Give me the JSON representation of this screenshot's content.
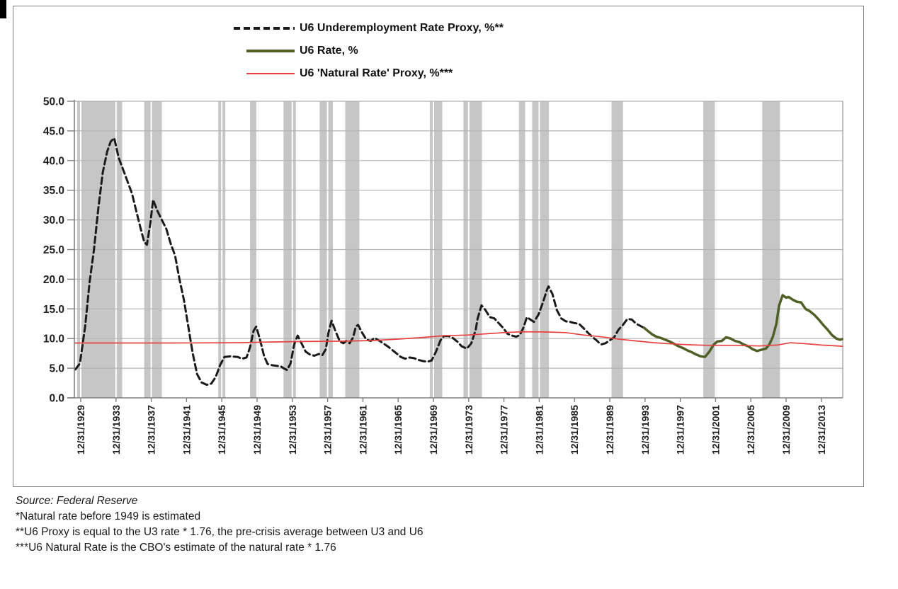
{
  "figure": {
    "legend": [
      {
        "label": "U6 Underemployment Rate Proxy, %**",
        "style": "dashed",
        "color": "#1a1a1a"
      },
      {
        "label": "U6 Rate, %",
        "style": "solid",
        "color": "#4f5f26"
      },
      {
        "label": "U6 'Natural Rate' Proxy, %***",
        "style": "solid-thin",
        "color": "#e84040"
      }
    ],
    "footnotes": {
      "source": "Source: Federal Reserve",
      "note1": "*Natural rate before 1949 is estimated",
      "note2": "**U6 Proxy is equal to the U3 rate * 1.76, the pre-crisis average between U3 and U6",
      "note3": "***U6 Natural Rate is the CBO's estimate of the natural rate * 1.76"
    }
  },
  "chart_data": {
    "type": "line",
    "title": "",
    "xlabel": "",
    "ylabel": "",
    "ylim": [
      0,
      50
    ],
    "xlim_years": [
      1929.3,
      2016.4
    ],
    "grid": "horizontal",
    "legend_position": "top-center",
    "y_ticks": [
      {
        "v": 0,
        "label": "0.0"
      },
      {
        "v": 5,
        "label": "5.0"
      },
      {
        "v": 10,
        "label": "10.0"
      },
      {
        "v": 15,
        "label": "15.0"
      },
      {
        "v": 20,
        "label": "20.0"
      },
      {
        "v": 25,
        "label": "25.0"
      },
      {
        "v": 30,
        "label": "30.0"
      },
      {
        "v": 35,
        "label": "35.0"
      },
      {
        "v": 40,
        "label": "40.0"
      },
      {
        "v": 45,
        "label": "45.0"
      },
      {
        "v": 50,
        "label": "50.0"
      }
    ],
    "x_ticks": [
      {
        "t": 1930,
        "label": "12/31/1929"
      },
      {
        "t": 1934,
        "label": "12/31/1933"
      },
      {
        "t": 1938,
        "label": "12/31/1937"
      },
      {
        "t": 1942,
        "label": "12/31/1941"
      },
      {
        "t": 1946,
        "label": "12/31/1945"
      },
      {
        "t": 1950,
        "label": "12/31/1949"
      },
      {
        "t": 1954,
        "label": "12/31/1953"
      },
      {
        "t": 1958,
        "label": "12/31/1957"
      },
      {
        "t": 1962,
        "label": "12/31/1961"
      },
      {
        "t": 1966,
        "label": "12/31/1965"
      },
      {
        "t": 1970,
        "label": "12/31/1969"
      },
      {
        "t": 1974,
        "label": "12/31/1973"
      },
      {
        "t": 1978,
        "label": "12/31/1977"
      },
      {
        "t": 1982,
        "label": "12/31/1981"
      },
      {
        "t": 1986,
        "label": "12/31/1985"
      },
      {
        "t": 1990,
        "label": "12/31/1989"
      },
      {
        "t": 1994,
        "label": "12/31/1993"
      },
      {
        "t": 1998,
        "label": "12/31/1997"
      },
      {
        "t": 2002,
        "label": "12/31/2001"
      },
      {
        "t": 2006,
        "label": "12/31/2005"
      },
      {
        "t": 2010,
        "label": "12/31/2009"
      },
      {
        "t": 2014,
        "label": "12/31/2013"
      }
    ],
    "recession_bands": [
      [
        1929.6,
        1934.7
      ],
      [
        1937.2,
        1939.2
      ],
      [
        1945.6,
        1946.4
      ],
      [
        1949.2,
        1950.1
      ],
      [
        1953.0,
        1954.4
      ],
      [
        1957.1,
        1958.6
      ],
      [
        1960.0,
        1961.6
      ],
      [
        1969.6,
        1971.0
      ],
      [
        1973.4,
        1975.5
      ],
      [
        1979.7,
        1980.4
      ],
      [
        1981.2,
        1983.1
      ],
      [
        1990.2,
        1991.5
      ],
      [
        2000.6,
        2002.1
      ],
      [
        2007.3,
        2009.3
      ]
    ],
    "colors": {
      "band": "#c6c6c6",
      "grid": "#b3b3b3",
      "axis": "#808080",
      "plot_border": "#9a9a9a",
      "tick_text": "#1f1f1f",
      "white_gridline": "#ffffff",
      "proxy_line": "#1a1a1a",
      "u6_line": "#4f5f26",
      "natural_line": "#e84040"
    },
    "series": [
      {
        "name": "U6 Underemployment Rate Proxy, %**",
        "color": "#1a1a1a",
        "width": 3,
        "dash": "9,5",
        "points": [
          [
            1929.4,
            4.8
          ],
          [
            1929.9,
            5.8
          ],
          [
            1930.5,
            12
          ],
          [
            1931,
            19.5
          ],
          [
            1931.5,
            25
          ],
          [
            1932,
            32
          ],
          [
            1932.5,
            38
          ],
          [
            1933,
            41.5
          ],
          [
            1933.4,
            43.2
          ],
          [
            1933.8,
            43.8
          ],
          [
            1934.3,
            40.5
          ],
          [
            1934.8,
            38.5
          ],
          [
            1935.3,
            36.5
          ],
          [
            1935.8,
            34.5
          ],
          [
            1936.3,
            31.5
          ],
          [
            1936.8,
            28.5
          ],
          [
            1937.2,
            26.3
          ],
          [
            1937.5,
            25.8
          ],
          [
            1937.9,
            29.5
          ],
          [
            1938.2,
            33.4
          ],
          [
            1938.7,
            31.5
          ],
          [
            1939.2,
            30
          ],
          [
            1939.7,
            28.5
          ],
          [
            1940.2,
            26
          ],
          [
            1940.7,
            24
          ],
          [
            1941.2,
            20
          ],
          [
            1941.7,
            16.5
          ],
          [
            1942.2,
            12
          ],
          [
            1942.7,
            7.5
          ],
          [
            1943.2,
            4
          ],
          [
            1943.7,
            2.6
          ],
          [
            1944.3,
            2.2
          ],
          [
            1944.8,
            2.4
          ],
          [
            1945.3,
            3.5
          ],
          [
            1945.8,
            5.5
          ],
          [
            1946.3,
            6.9
          ],
          [
            1947,
            7
          ],
          [
            1947.8,
            6.9
          ],
          [
            1948.3,
            6.6
          ],
          [
            1948.8,
            6.8
          ],
          [
            1949.2,
            8.5
          ],
          [
            1949.6,
            11.3
          ],
          [
            1949.9,
            12
          ],
          [
            1950.3,
            10
          ],
          [
            1950.8,
            7
          ],
          [
            1951.2,
            5.7
          ],
          [
            1951.7,
            5.5
          ],
          [
            1952.2,
            5.4
          ],
          [
            1952.7,
            5.3
          ],
          [
            1953.1,
            4.9
          ],
          [
            1953.4,
            4.7
          ],
          [
            1953.8,
            5.8
          ],
          [
            1954.2,
            9
          ],
          [
            1954.6,
            10.5
          ],
          [
            1955,
            9.3
          ],
          [
            1955.5,
            7.8
          ],
          [
            1956,
            7.3
          ],
          [
            1956.5,
            7.1
          ],
          [
            1957,
            7.4
          ],
          [
            1957.4,
            7.2
          ],
          [
            1957.8,
            8.2
          ],
          [
            1958.1,
            11
          ],
          [
            1958.45,
            13
          ],
          [
            1958.9,
            11.2
          ],
          [
            1959.4,
            9.5
          ],
          [
            1959.8,
            9.2
          ],
          [
            1960.1,
            9.6
          ],
          [
            1960.5,
            9.2
          ],
          [
            1960.9,
            10.2
          ],
          [
            1961.2,
            12
          ],
          [
            1961.45,
            12.3
          ],
          [
            1961.9,
            11
          ],
          [
            1962.4,
            9.8
          ],
          [
            1962.9,
            9.6
          ],
          [
            1963.3,
            10.1
          ],
          [
            1963.8,
            9.7
          ],
          [
            1964.3,
            9.2
          ],
          [
            1964.8,
            8.7
          ],
          [
            1965.3,
            8.1
          ],
          [
            1965.8,
            7.5
          ],
          [
            1966.3,
            6.9
          ],
          [
            1966.8,
            6.6
          ],
          [
            1967.3,
            6.8
          ],
          [
            1967.8,
            6.7
          ],
          [
            1968.3,
            6.4
          ],
          [
            1968.8,
            6.2
          ],
          [
            1969.3,
            6.1
          ],
          [
            1969.8,
            6.3
          ],
          [
            1970.3,
            7.8
          ],
          [
            1970.8,
            9.7
          ],
          [
            1971.2,
            10.4
          ],
          [
            1971.7,
            10.4
          ],
          [
            1972.2,
            10.1
          ],
          [
            1972.7,
            9.5
          ],
          [
            1973.2,
            8.7
          ],
          [
            1973.8,
            8.3
          ],
          [
            1974.3,
            9.2
          ],
          [
            1974.8,
            11.5
          ],
          [
            1975,
            13.3
          ],
          [
            1975.2,
            14.3
          ],
          [
            1975.45,
            15.6
          ],
          [
            1975.9,
            14.8
          ],
          [
            1976.4,
            13.6
          ],
          [
            1976.9,
            13.4
          ],
          [
            1977.4,
            12.6
          ],
          [
            1977.9,
            11.8
          ],
          [
            1978.4,
            10.8
          ],
          [
            1978.9,
            10.5
          ],
          [
            1979.4,
            10.3
          ],
          [
            1979.8,
            10.6
          ],
          [
            1980.2,
            11.8
          ],
          [
            1980.6,
            13.6
          ],
          [
            1981,
            13.2
          ],
          [
            1981.4,
            12.8
          ],
          [
            1981.9,
            14
          ],
          [
            1982.4,
            16
          ],
          [
            1982.9,
            18.3
          ],
          [
            1983.05,
            18.8
          ],
          [
            1983.5,
            17.5
          ],
          [
            1984,
            14.8
          ],
          [
            1984.5,
            13.4
          ],
          [
            1985,
            12.9
          ],
          [
            1985.5,
            12.8
          ],
          [
            1986,
            12.6
          ],
          [
            1986.5,
            12.5
          ],
          [
            1987,
            11.8
          ],
          [
            1987.5,
            11
          ],
          [
            1988,
            10.3
          ],
          [
            1988.5,
            9.7
          ],
          [
            1989,
            9
          ],
          [
            1989.5,
            9.2
          ],
          [
            1990,
            9.7
          ],
          [
            1990.5,
            10.2
          ],
          [
            1991,
            11.5
          ],
          [
            1991.5,
            12.3
          ],
          [
            1992,
            13.3
          ],
          [
            1992.5,
            13.2
          ],
          [
            1993,
            12.5
          ],
          [
            1993.5,
            12.1
          ],
          [
            1994,
            11.7
          ]
        ]
      },
      {
        "name": "U6 Rate, %",
        "color": "#4f5f26",
        "width": 3.5,
        "dash": null,
        "points": [
          [
            1993.9,
            11.8
          ],
          [
            1994.3,
            11.3
          ],
          [
            1994.8,
            10.7
          ],
          [
            1995.3,
            10.3
          ],
          [
            1995.8,
            10.1
          ],
          [
            1996.3,
            9.8
          ],
          [
            1996.8,
            9.5
          ],
          [
            1997.3,
            9.1
          ],
          [
            1997.8,
            8.7
          ],
          [
            1998.3,
            8.4
          ],
          [
            1998.8,
            8
          ],
          [
            1999.3,
            7.7
          ],
          [
            1999.8,
            7.3
          ],
          [
            2000.3,
            7
          ],
          [
            2000.8,
            6.9
          ],
          [
            2001.3,
            7.8
          ],
          [
            2001.8,
            9
          ],
          [
            2002.2,
            9.5
          ],
          [
            2002.7,
            9.6
          ],
          [
            2003.2,
            10.2
          ],
          [
            2003.7,
            10
          ],
          [
            2004.2,
            9.6
          ],
          [
            2004.7,
            9.4
          ],
          [
            2005.2,
            9
          ],
          [
            2005.7,
            8.7
          ],
          [
            2006.2,
            8.2
          ],
          [
            2006.7,
            7.9
          ],
          [
            2007.2,
            8.1
          ],
          [
            2007.7,
            8.3
          ],
          [
            2008.1,
            9
          ],
          [
            2008.5,
            10.3
          ],
          [
            2008.9,
            12.5
          ],
          [
            2009.2,
            15.5
          ],
          [
            2009.6,
            17.3
          ],
          [
            2010,
            16.9
          ],
          [
            2010.3,
            17
          ],
          [
            2010.7,
            16.6
          ],
          [
            2011.2,
            16.2
          ],
          [
            2011.7,
            16.1
          ],
          [
            2012.2,
            15
          ],
          [
            2012.7,
            14.6
          ],
          [
            2013.2,
            14
          ],
          [
            2013.7,
            13.2
          ],
          [
            2014.2,
            12.3
          ],
          [
            2014.7,
            11.5
          ],
          [
            2015.2,
            10.6
          ],
          [
            2015.7,
            10
          ],
          [
            2016.1,
            9.8
          ],
          [
            2016.35,
            9.9
          ]
        ]
      },
      {
        "name": "U6 'Natural Rate' Proxy, %***",
        "color": "#e84040",
        "width": 1.7,
        "dash": null,
        "points": [
          [
            1929.3,
            9.25
          ],
          [
            1940,
            9.25
          ],
          [
            1948,
            9.3
          ],
          [
            1951,
            9.4
          ],
          [
            1955,
            9.5
          ],
          [
            1959,
            9.55
          ],
          [
            1963,
            9.65
          ],
          [
            1966,
            9.9
          ],
          [
            1969,
            10.2
          ],
          [
            1971,
            10.45
          ],
          [
            1974,
            10.6
          ],
          [
            1976,
            10.8
          ],
          [
            1978,
            11
          ],
          [
            1980,
            11.15
          ],
          [
            1983,
            11.1
          ],
          [
            1985,
            11
          ],
          [
            1987,
            10.6
          ],
          [
            1989,
            10.3
          ],
          [
            1991,
            9.9
          ],
          [
            1993,
            9.6
          ],
          [
            1995,
            9.3
          ],
          [
            1997,
            9.1
          ],
          [
            1999,
            8.95
          ],
          [
            2001,
            8.85
          ],
          [
            2004,
            8.85
          ],
          [
            2007,
            8.75
          ],
          [
            2009,
            8.9
          ],
          [
            2010.5,
            9.3
          ],
          [
            2012,
            9.15
          ],
          [
            2014,
            8.9
          ],
          [
            2016.35,
            8.7
          ]
        ]
      }
    ]
  }
}
